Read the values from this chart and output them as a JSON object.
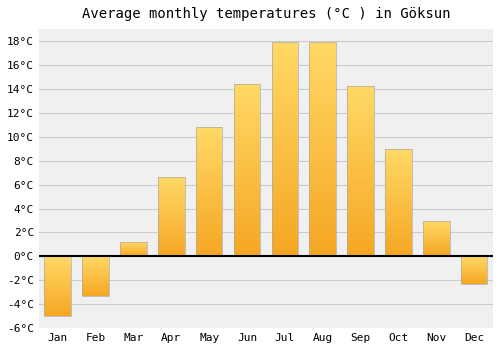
{
  "title": "Average monthly temperatures (°C ) in Göksun",
  "months": [
    "Jan",
    "Feb",
    "Mar",
    "Apr",
    "May",
    "Jun",
    "Jul",
    "Aug",
    "Sep",
    "Oct",
    "Nov",
    "Dec"
  ],
  "temperatures": [
    -5.0,
    -3.3,
    1.2,
    6.6,
    10.8,
    14.4,
    17.9,
    17.9,
    14.2,
    9.0,
    3.0,
    -2.3
  ],
  "bar_color_bottom": "#F5A623",
  "bar_color_top": "#FFD966",
  "bar_edge_color": "#aaaaaa",
  "ylim": [
    -6,
    19
  ],
  "yticks": [
    -6,
    -4,
    -2,
    0,
    2,
    4,
    6,
    8,
    10,
    12,
    14,
    16,
    18
  ],
  "ytick_labels": [
    "-6°C",
    "-4°C",
    "-2°C",
    "0°C",
    "2°C",
    "4°C",
    "6°C",
    "8°C",
    "10°C",
    "12°C",
    "14°C",
    "16°C",
    "18°C"
  ],
  "background_color": "#ffffff",
  "plot_bg_color": "#f0f0f0",
  "grid_color": "#cccccc",
  "zero_line_color": "#000000",
  "title_fontsize": 10,
  "tick_fontsize": 8,
  "bar_width": 0.7,
  "n_gradient_steps": 100
}
